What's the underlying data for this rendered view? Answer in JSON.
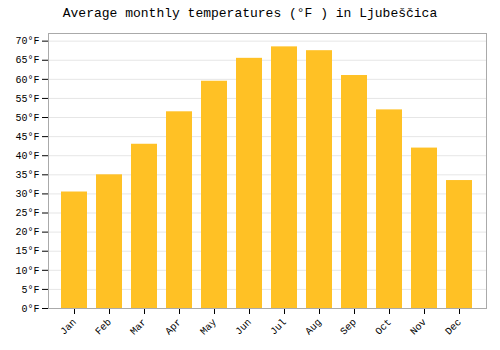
{
  "chart_data": {
    "type": "bar",
    "title": "Average monthly temperatures (°F ) in Ljubeščica",
    "categories": [
      "Jan",
      "Feb",
      "Mar",
      "Apr",
      "May",
      "Jun",
      "Jul",
      "Aug",
      "Sep",
      "Oct",
      "Nov",
      "Dec"
    ],
    "values": [
      30.5,
      35.0,
      43.0,
      51.5,
      59.5,
      65.5,
      68.5,
      67.5,
      61.0,
      52.0,
      42.0,
      33.5
    ],
    "color": "#FFC125",
    "ylim": [
      0,
      72
    ],
    "yticks": [
      {
        "value": 0,
        "label": "0°F"
      },
      {
        "value": 5,
        "label": "5°F"
      },
      {
        "value": 10,
        "label": "10°F"
      },
      {
        "value": 15,
        "label": "15°F"
      },
      {
        "value": 20,
        "label": "20°F"
      },
      {
        "value": 25,
        "label": "25°F"
      },
      {
        "value": 30,
        "label": "30°F"
      },
      {
        "value": 35,
        "label": "35°F"
      },
      {
        "value": 40,
        "label": "40°F"
      },
      {
        "value": 45,
        "label": "45°F"
      },
      {
        "value": 50,
        "label": "50°F"
      },
      {
        "value": 55,
        "label": "55°F"
      },
      {
        "value": 60,
        "label": "60°F"
      },
      {
        "value": 65,
        "label": "65°F"
      },
      {
        "value": 70,
        "label": "70°F"
      }
    ],
    "grid": true
  }
}
